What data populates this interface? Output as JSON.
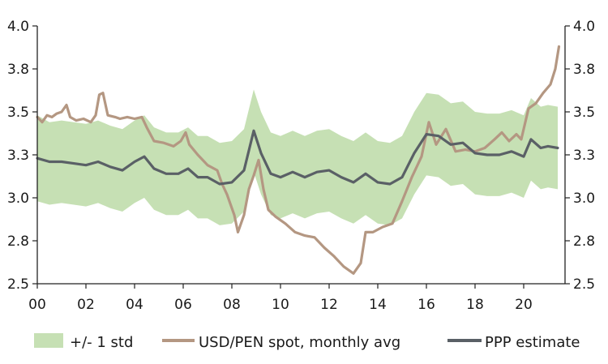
{
  "chart_data": {
    "type": "line",
    "title": "",
    "xlabel": "",
    "ylabel": "",
    "xlim": [
      2000,
      2021.7
    ],
    "ylim": [
      2.5,
      4.0
    ],
    "x_ticks": [
      0,
      2,
      4,
      6,
      8,
      10,
      12,
      14,
      16,
      18,
      20
    ],
    "x_tick_labels": [
      "00",
      "02",
      "04",
      "06",
      "08",
      "10",
      "12",
      "14",
      "16",
      "18",
      "20"
    ],
    "y_ticks": [
      2.5,
      2.75,
      3.0,
      3.25,
      3.5,
      3.75,
      4.0
    ],
    "y_tick_labels_left": [
      "2.5",
      "2.8",
      "3.0",
      "3.3",
      "3.5",
      "3.8",
      "4.0"
    ],
    "y_tick_labels_right": [
      "2.5",
      "2.8",
      "3.0",
      "3.3",
      "3.5",
      "3.8",
      "4.0"
    ],
    "legend_position": "bottom",
    "grid": false,
    "colors": {
      "band": "#c6e0b4",
      "spot": "#b49782",
      "ppp": "#5a6066",
      "axis": "#222222"
    },
    "legend": [
      {
        "label": "+/- 1 std",
        "kind": "band"
      },
      {
        "label": "USD/PEN spot, monthly avg",
        "kind": "spot"
      },
      {
        "label": "PPP estimate",
        "kind": "ppp"
      }
    ],
    "series": [
      {
        "name": "USD/PEN spot, monthly avg",
        "points": [
          [
            2000,
            3.47
          ],
          [
            2000.2,
            3.44
          ],
          [
            2000.4,
            3.48
          ],
          [
            2000.6,
            3.47
          ],
          [
            2000.8,
            3.49
          ],
          [
            2001,
            3.5
          ],
          [
            2001.2,
            3.54
          ],
          [
            2001.35,
            3.47
          ],
          [
            2001.6,
            3.45
          ],
          [
            2001.9,
            3.46
          ],
          [
            2002.2,
            3.44
          ],
          [
            2002.4,
            3.48
          ],
          [
            2002.55,
            3.6
          ],
          [
            2002.7,
            3.61
          ],
          [
            2002.9,
            3.48
          ],
          [
            2003.2,
            3.47
          ],
          [
            2003.4,
            3.46
          ],
          [
            2003.7,
            3.47
          ],
          [
            2004,
            3.46
          ],
          [
            2004.3,
            3.47
          ],
          [
            2004.5,
            3.41
          ],
          [
            2004.8,
            3.33
          ],
          [
            2005.2,
            3.32
          ],
          [
            2005.6,
            3.3
          ],
          [
            2005.9,
            3.33
          ],
          [
            2006.1,
            3.38
          ],
          [
            2006.25,
            3.31
          ],
          [
            2006.6,
            3.25
          ],
          [
            2007,
            3.19
          ],
          [
            2007.4,
            3.16
          ],
          [
            2007.6,
            3.08
          ],
          [
            2007.8,
            3.02
          ],
          [
            2008.1,
            2.9
          ],
          [
            2008.25,
            2.8
          ],
          [
            2008.5,
            2.9
          ],
          [
            2008.7,
            3.05
          ],
          [
            2008.9,
            3.13
          ],
          [
            2009.1,
            3.22
          ],
          [
            2009.3,
            3.05
          ],
          [
            2009.5,
            2.93
          ],
          [
            2009.8,
            2.89
          ],
          [
            2010.2,
            2.85
          ],
          [
            2010.6,
            2.8
          ],
          [
            2011,
            2.78
          ],
          [
            2011.4,
            2.77
          ],
          [
            2011.8,
            2.71
          ],
          [
            2012.2,
            2.66
          ],
          [
            2012.6,
            2.6
          ],
          [
            2013,
            2.56
          ],
          [
            2013.3,
            2.62
          ],
          [
            2013.5,
            2.8
          ],
          [
            2013.8,
            2.8
          ],
          [
            2014.2,
            2.83
          ],
          [
            2014.6,
            2.85
          ],
          [
            2015,
            2.98
          ],
          [
            2015.4,
            3.12
          ],
          [
            2015.8,
            3.24
          ],
          [
            2016.1,
            3.44
          ],
          [
            2016.4,
            3.31
          ],
          [
            2016.8,
            3.4
          ],
          [
            2017.2,
            3.27
          ],
          [
            2017.6,
            3.28
          ],
          [
            2018,
            3.27
          ],
          [
            2018.4,
            3.29
          ],
          [
            2018.8,
            3.34
          ],
          [
            2019.1,
            3.38
          ],
          [
            2019.4,
            3.33
          ],
          [
            2019.7,
            3.37
          ],
          [
            2019.9,
            3.34
          ],
          [
            2020.2,
            3.52
          ],
          [
            2020.5,
            3.55
          ],
          [
            2020.8,
            3.61
          ],
          [
            2021.1,
            3.66
          ],
          [
            2021.3,
            3.75
          ],
          [
            2021.45,
            3.88
          ]
        ]
      },
      {
        "name": "PPP estimate",
        "points": [
          [
            2000,
            3.23
          ],
          [
            2000.5,
            3.21
          ],
          [
            2001,
            3.21
          ],
          [
            2001.5,
            3.2
          ],
          [
            2002,
            3.19
          ],
          [
            2002.5,
            3.21
          ],
          [
            2003,
            3.18
          ],
          [
            2003.5,
            3.16
          ],
          [
            2004,
            3.21
          ],
          [
            2004.4,
            3.24
          ],
          [
            2004.8,
            3.17
          ],
          [
            2005.3,
            3.14
          ],
          [
            2005.8,
            3.14
          ],
          [
            2006.2,
            3.17
          ],
          [
            2006.6,
            3.12
          ],
          [
            2007,
            3.12
          ],
          [
            2007.5,
            3.08
          ],
          [
            2008,
            3.09
          ],
          [
            2008.5,
            3.16
          ],
          [
            2008.9,
            3.39
          ],
          [
            2009.2,
            3.26
          ],
          [
            2009.6,
            3.14
          ],
          [
            2010,
            3.12
          ],
          [
            2010.5,
            3.15
          ],
          [
            2011,
            3.12
          ],
          [
            2011.5,
            3.15
          ],
          [
            2012,
            3.16
          ],
          [
            2012.5,
            3.12
          ],
          [
            2013,
            3.09
          ],
          [
            2013.5,
            3.14
          ],
          [
            2014,
            3.09
          ],
          [
            2014.5,
            3.08
          ],
          [
            2015,
            3.12
          ],
          [
            2015.5,
            3.26
          ],
          [
            2016,
            3.37
          ],
          [
            2016.5,
            3.36
          ],
          [
            2017,
            3.31
          ],
          [
            2017.5,
            3.32
          ],
          [
            2018,
            3.26
          ],
          [
            2018.5,
            3.25
          ],
          [
            2019,
            3.25
          ],
          [
            2019.5,
            3.27
          ],
          [
            2020,
            3.24
          ],
          [
            2020.3,
            3.34
          ],
          [
            2020.7,
            3.29
          ],
          [
            2021,
            3.3
          ],
          [
            2021.4,
            3.29
          ]
        ]
      },
      {
        "name": "+/- 1 std",
        "upper": [
          [
            2000,
            3.48
          ],
          [
            2000.5,
            3.44
          ],
          [
            2001,
            3.45
          ],
          [
            2001.5,
            3.44
          ],
          [
            2002,
            3.43
          ],
          [
            2002.5,
            3.45
          ],
          [
            2003,
            3.42
          ],
          [
            2003.5,
            3.4
          ],
          [
            2004,
            3.45
          ],
          [
            2004.4,
            3.48
          ],
          [
            2004.8,
            3.41
          ],
          [
            2005.3,
            3.38
          ],
          [
            2005.8,
            3.38
          ],
          [
            2006.2,
            3.41
          ],
          [
            2006.6,
            3.36
          ],
          [
            2007,
            3.36
          ],
          [
            2007.5,
            3.32
          ],
          [
            2008,
            3.33
          ],
          [
            2008.5,
            3.4
          ],
          [
            2008.9,
            3.63
          ],
          [
            2009.2,
            3.5
          ],
          [
            2009.6,
            3.38
          ],
          [
            2010,
            3.36
          ],
          [
            2010.5,
            3.39
          ],
          [
            2011,
            3.36
          ],
          [
            2011.5,
            3.39
          ],
          [
            2012,
            3.4
          ],
          [
            2012.5,
            3.36
          ],
          [
            2013,
            3.33
          ],
          [
            2013.5,
            3.38
          ],
          [
            2014,
            3.33
          ],
          [
            2014.5,
            3.32
          ],
          [
            2015,
            3.36
          ],
          [
            2015.5,
            3.5
          ],
          [
            2016,
            3.61
          ],
          [
            2016.5,
            3.6
          ],
          [
            2017,
            3.55
          ],
          [
            2017.5,
            3.56
          ],
          [
            2018,
            3.5
          ],
          [
            2018.5,
            3.49
          ],
          [
            2019,
            3.49
          ],
          [
            2019.5,
            3.51
          ],
          [
            2020,
            3.48
          ],
          [
            2020.3,
            3.58
          ],
          [
            2020.7,
            3.53
          ],
          [
            2021,
            3.54
          ],
          [
            2021.4,
            3.53
          ]
        ],
        "lower": [
          [
            2000,
            2.98
          ],
          [
            2000.5,
            2.96
          ],
          [
            2001,
            2.97
          ],
          [
            2001.5,
            2.96
          ],
          [
            2002,
            2.95
          ],
          [
            2002.5,
            2.97
          ],
          [
            2003,
            2.94
          ],
          [
            2003.5,
            2.92
          ],
          [
            2004,
            2.97
          ],
          [
            2004.4,
            3.0
          ],
          [
            2004.8,
            2.93
          ],
          [
            2005.3,
            2.9
          ],
          [
            2005.8,
            2.9
          ],
          [
            2006.2,
            2.93
          ],
          [
            2006.6,
            2.88
          ],
          [
            2007,
            2.88
          ],
          [
            2007.5,
            2.84
          ],
          [
            2008,
            2.85
          ],
          [
            2008.5,
            2.92
          ],
          [
            2008.9,
            3.15
          ],
          [
            2009.2,
            3.02
          ],
          [
            2009.6,
            2.9
          ],
          [
            2010,
            2.88
          ],
          [
            2010.5,
            2.91
          ],
          [
            2011,
            2.88
          ],
          [
            2011.5,
            2.91
          ],
          [
            2012,
            2.92
          ],
          [
            2012.5,
            2.88
          ],
          [
            2013,
            2.85
          ],
          [
            2013.5,
            2.9
          ],
          [
            2014,
            2.85
          ],
          [
            2014.5,
            2.84
          ],
          [
            2015,
            2.88
          ],
          [
            2015.5,
            3.02
          ],
          [
            2016,
            3.13
          ],
          [
            2016.5,
            3.12
          ],
          [
            2017,
            3.07
          ],
          [
            2017.5,
            3.08
          ],
          [
            2018,
            3.02
          ],
          [
            2018.5,
            3.01
          ],
          [
            2019,
            3.01
          ],
          [
            2019.5,
            3.03
          ],
          [
            2020,
            3.0
          ],
          [
            2020.3,
            3.1
          ],
          [
            2020.7,
            3.05
          ],
          [
            2021,
            3.06
          ],
          [
            2021.4,
            3.05
          ]
        ]
      }
    ]
  }
}
